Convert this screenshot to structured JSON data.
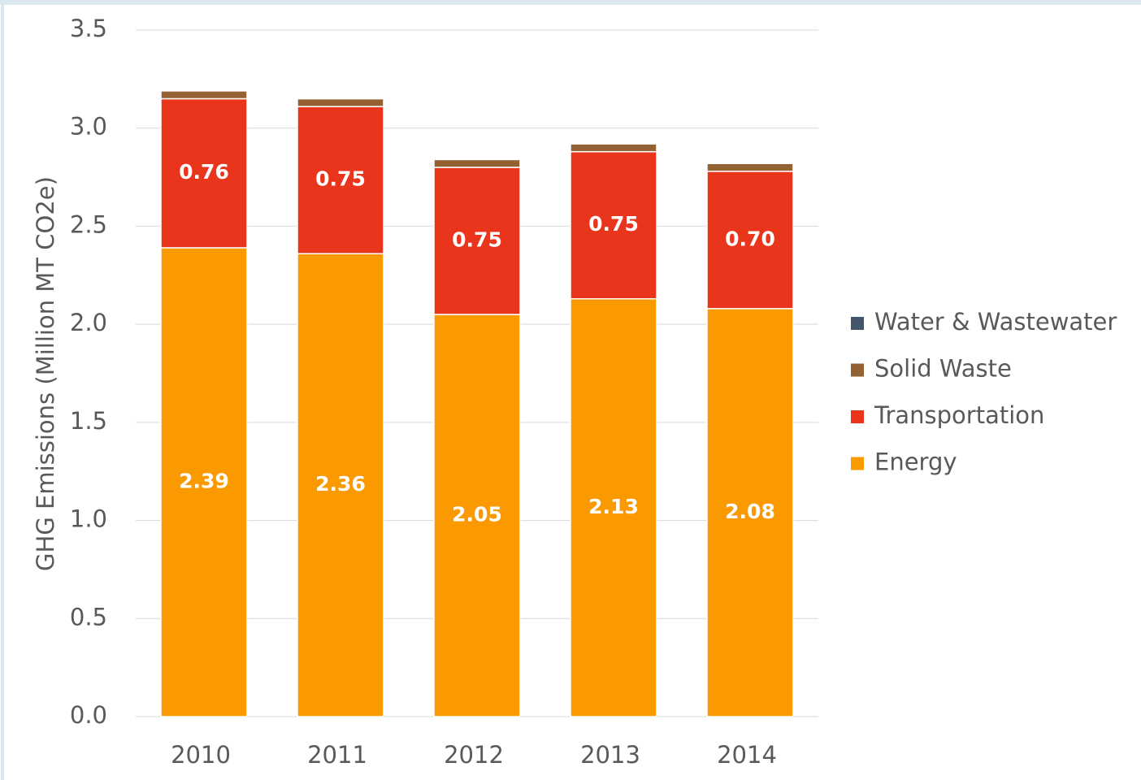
{
  "chart_data": {
    "type": "stacked_bar",
    "y_label": "GHG Emissions (Million MT CO2e)",
    "categories": [
      "2010",
      "2011",
      "2012",
      "2013",
      "2014"
    ],
    "series": [
      {
        "name": "Energy",
        "color": "#fa9a00",
        "values": [
          2.39,
          2.36,
          2.05,
          2.13,
          2.08
        ],
        "value_labels": [
          "2.39",
          "2.36",
          "2.05",
          "2.13",
          "2.08"
        ]
      },
      {
        "name": "Transportation",
        "color": "#e9351b",
        "values": [
          0.76,
          0.75,
          0.75,
          0.75,
          0.7
        ],
        "value_labels": [
          "0.76",
          "0.75",
          "0.75",
          "0.75",
          "0.70"
        ]
      },
      {
        "name": "Solid Waste",
        "color": "#946133",
        "values": [
          0.04,
          0.04,
          0.04,
          0.04,
          0.04
        ]
      },
      {
        "name": "Water & Wastewater",
        "color": "#44546a",
        "values": [
          0.002,
          0.002,
          0.002,
          0.002,
          0.002
        ]
      }
    ],
    "ylim": [
      0,
      3.5
    ],
    "yticks": [
      {
        "value": 0,
        "label": "0.0"
      },
      0.5,
      {
        "value": 1,
        "label": "1.0"
      },
      1.5,
      {
        "value": 2,
        "label": "2.0"
      },
      2.5,
      {
        "value": 3,
        "label": "3.0"
      },
      3.5
    ],
    "grid": true
  }
}
